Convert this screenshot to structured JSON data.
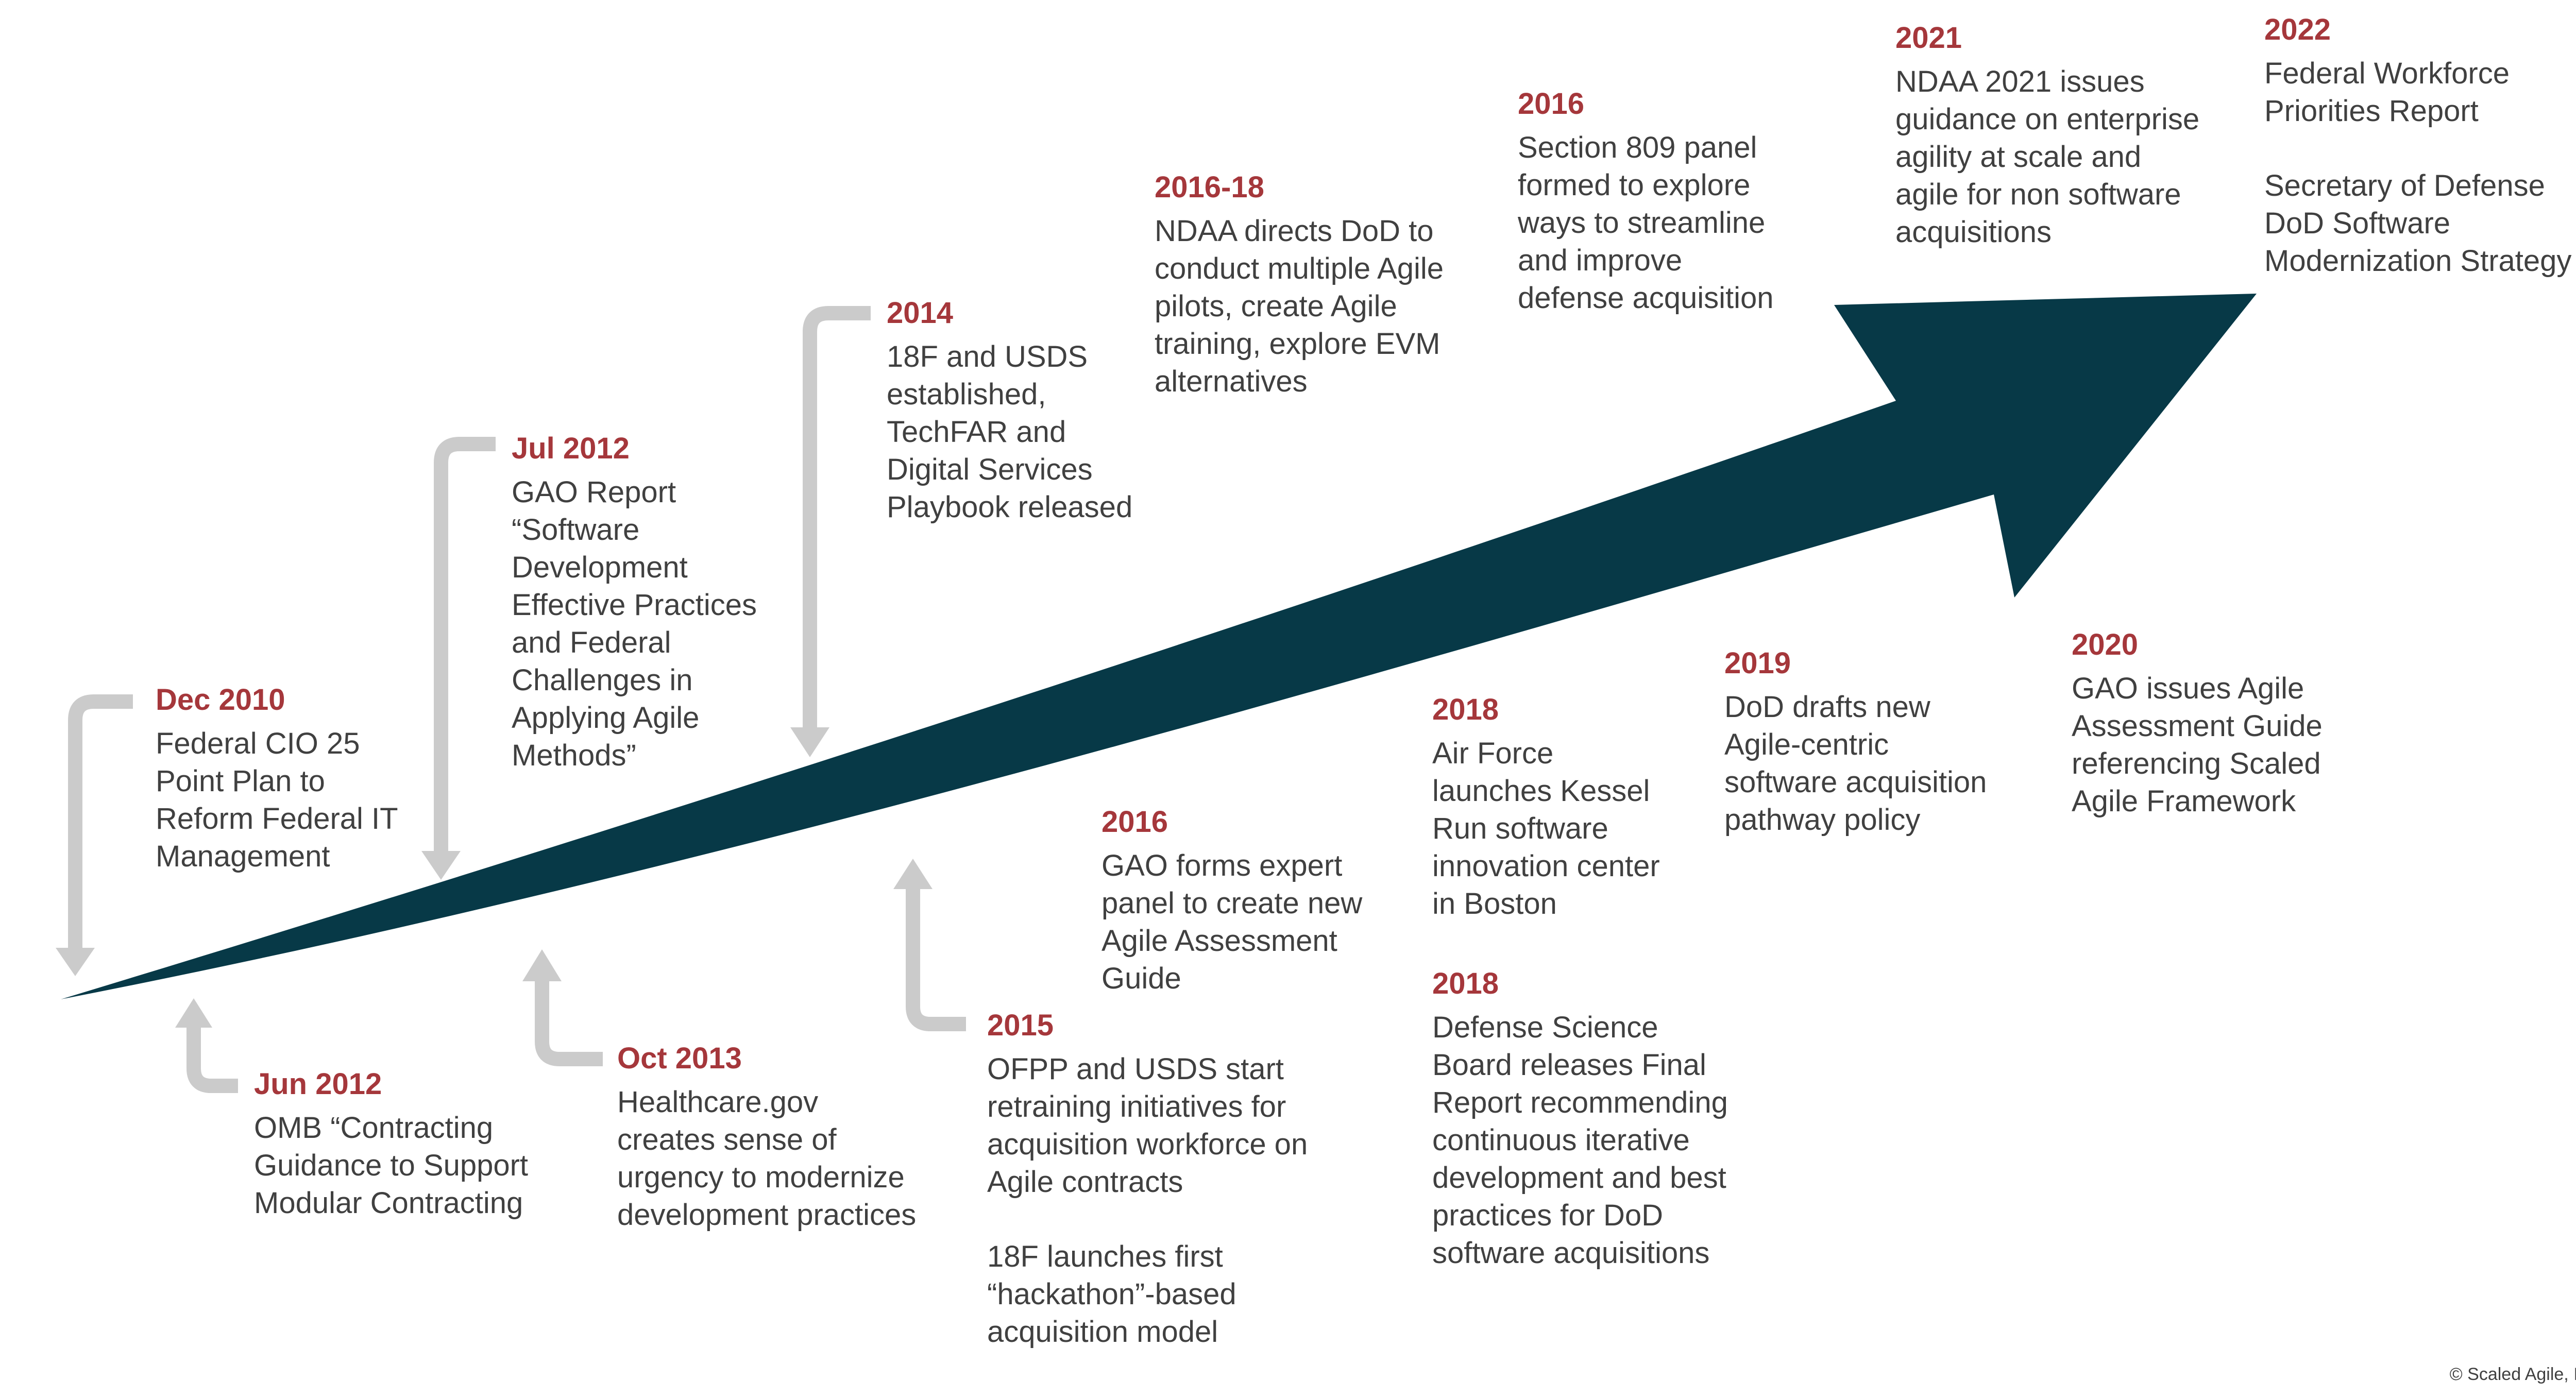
{
  "events": [
    {
      "date": "Dec 2010",
      "text": "Federal CIO 25\nPoint Plan to\nReform Federal IT\nManagement"
    },
    {
      "date": "Jun 2012",
      "text": "OMB “Contracting\nGuidance to Support\nModular Contracting"
    },
    {
      "date": "Jul 2012",
      "text": "GAO Report\n“Software\nDevelopment\nEffective Practices\nand Federal\nChallenges in\nApplying Agile\nMethods”"
    },
    {
      "date": "Oct 2013",
      "text": "Healthcare.gov\ncreates sense of\nurgency to modernize\ndevelopment practices"
    },
    {
      "date": "2014",
      "text": "18F and USDS\nestablished,\nTechFAR and\nDigital Services\nPlaybook released"
    },
    {
      "date": "2015",
      "text": "OFPP and USDS start\nretraining initiatives for\nacquisition workforce on\nAgile contracts",
      "text2": "18F launches first\n“hackathon”-based\nacquisition model"
    },
    {
      "date": "2016",
      "text": "GAO forms expert\npanel to create new\nAgile Assessment\nGuide"
    },
    {
      "date": "2016-18",
      "text": "NDAA directs DoD to\nconduct multiple Agile\npilots, create Agile\ntraining, explore EVM\nalternatives"
    },
    {
      "date": "2016",
      "text": "Section 809 panel\nformed to explore\nways to streamline\nand improve\ndefense acquisition"
    },
    {
      "date": "2018",
      "text": "Air Force\nlaunches Kessel\nRun software\ninnovation center\nin Boston"
    },
    {
      "date": "2018",
      "text": "Defense Science\nBoard releases Final\nReport recommending\ncontinuous iterative\ndevelopment and best\npractices for DoD\nsoftware acquisitions"
    },
    {
      "date": "2019",
      "text": "DoD drafts new\nAgile-centric\nsoftware acquisition\npathway policy"
    },
    {
      "date": "2020",
      "text": "GAO issues Agile\nAssessment Guide\nreferencing Scaled\nAgile Framework"
    },
    {
      "date": "2021",
      "text": "NDAA 2021 issues\nguidance on enterprise\nagility at scale and\nagile for non software\nacquisitions"
    },
    {
      "date": "2022",
      "text": "Federal Workforce\nPriorities Report",
      "text2": "Secretary of Defense\nDoD Software\nModernization Strategy"
    }
  ],
  "copyright": "© Scaled Agile, Inc.",
  "colors": {
    "arrow": "#073947",
    "connector": "#cbcbcb",
    "date": "#a5373b",
    "text": "#404040"
  }
}
